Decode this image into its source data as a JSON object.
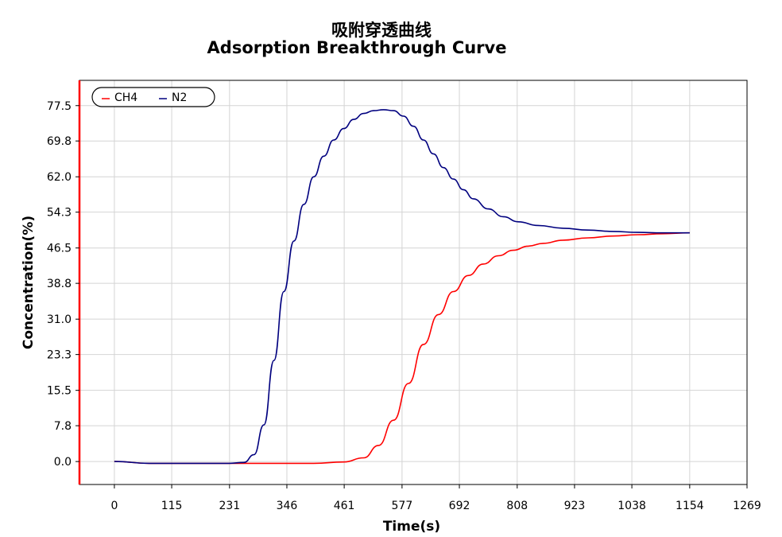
{
  "chart_data": {
    "type": "line",
    "title": "吸附穿透曲线",
    "subtitle": "Adsorption Breakthrough Curve",
    "xlabel": "Time(s)",
    "ylabel": "Concentration(%)",
    "xlim": [
      -70,
      1269
    ],
    "ylim": [
      -5,
      83
    ],
    "x_ticks": [
      "0",
      "115",
      "231",
      "346",
      "461",
      "577",
      "692",
      "808",
      "923",
      "1038",
      "1154",
      "1269"
    ],
    "y_ticks": [
      "0.0",
      "7.8",
      "15.5",
      "23.3",
      "31.0",
      "38.8",
      "46.5",
      "54.3",
      "62.0",
      "69.8",
      "77.5"
    ],
    "grid": true,
    "legend_position": "top-left",
    "series": [
      {
        "name": "CH4",
        "color": "#ff0000",
        "x": [
          0,
          70,
          150,
          230,
          300,
          400,
          460,
          500,
          530,
          560,
          590,
          620,
          650,
          680,
          710,
          740,
          770,
          800,
          830,
          860,
          900,
          950,
          1000,
          1050,
          1100,
          1154
        ],
        "y": [
          0,
          -0.4,
          -0.4,
          -0.4,
          -0.4,
          -0.4,
          -0.1,
          0.8,
          3.5,
          9,
          17,
          25.5,
          32,
          37,
          40.5,
          43,
          44.8,
          46,
          46.9,
          47.5,
          48.2,
          48.7,
          49.1,
          49.4,
          49.6,
          49.8
        ]
      },
      {
        "name": "N2",
        "color": "#00007f",
        "x": [
          0,
          70,
          150,
          230,
          260,
          280,
          300,
          320,
          340,
          360,
          380,
          400,
          420,
          440,
          460,
          480,
          500,
          520,
          540,
          560,
          580,
          600,
          620,
          640,
          660,
          680,
          700,
          720,
          750,
          780,
          810,
          850,
          900,
          950,
          1000,
          1050,
          1100,
          1154
        ],
        "y": [
          0,
          -0.4,
          -0.4,
          -0.4,
          -0.2,
          1.5,
          8,
          22,
          37,
          48,
          56,
          62,
          66.5,
          70,
          72.5,
          74.5,
          75.8,
          76.4,
          76.6,
          76.4,
          75.2,
          73,
          70,
          67,
          64,
          61.5,
          59.2,
          57.2,
          55,
          53.3,
          52.2,
          51.4,
          50.8,
          50.4,
          50.1,
          49.9,
          49.8,
          49.8
        ]
      }
    ]
  }
}
